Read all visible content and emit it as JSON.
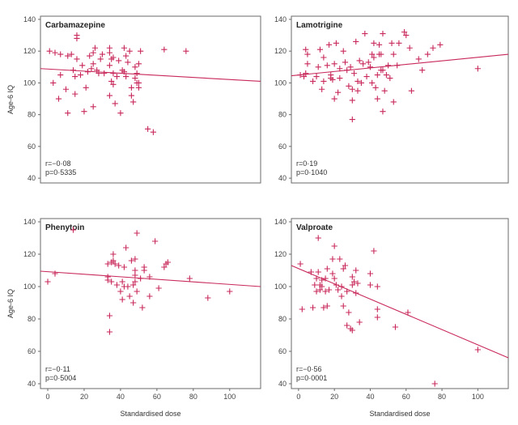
{
  "point_color": "#c8285a",
  "axis_color": "#6a6a6a",
  "chart_data": [
    {
      "type": "scatter",
      "title": "Carbamazepine",
      "xlabel": "",
      "ylabel": "Age-6 IQ",
      "xlim": [
        -4,
        117
      ],
      "ylim": [
        37,
        142
      ],
      "xticks": [],
      "yticks": [
        "40",
        "60",
        "80",
        "100",
        "120",
        "140"
      ],
      "stats": [
        "r=−0·08",
        "p=0·5335"
      ],
      "regression": {
        "x": [
          -4,
          117
        ],
        "y": [
          109,
          101
        ]
      },
      "points": [
        [
          1,
          120
        ],
        [
          3,
          100
        ],
        [
          4,
          119
        ],
        [
          6,
          90
        ],
        [
          7,
          118
        ],
        [
          7,
          105
        ],
        [
          10,
          96
        ],
        [
          11,
          117
        ],
        [
          11,
          81
        ],
        [
          13,
          118
        ],
        [
          14,
          108
        ],
        [
          15,
          104
        ],
        [
          15,
          93
        ],
        [
          16,
          130
        ],
        [
          16,
          128
        ],
        [
          16,
          115
        ],
        [
          18,
          105
        ],
        [
          19,
          111
        ],
        [
          20,
          82
        ],
        [
          21,
          97
        ],
        [
          22,
          107
        ],
        [
          23,
          117
        ],
        [
          24,
          109
        ],
        [
          25,
          85
        ],
        [
          25,
          112
        ],
        [
          25,
          119
        ],
        [
          26,
          122
        ],
        [
          27,
          108
        ],
        [
          28,
          106
        ],
        [
          29,
          115
        ],
        [
          30,
          118
        ],
        [
          31,
          106
        ],
        [
          34,
          119
        ],
        [
          34,
          111
        ],
        [
          34,
          122
        ],
        [
          34,
          92
        ],
        [
          35,
          115
        ],
        [
          35,
          101
        ],
        [
          36,
          99
        ],
        [
          36,
          116
        ],
        [
          36,
          106
        ],
        [
          37,
          87
        ],
        [
          38,
          104
        ],
        [
          39,
          114
        ],
        [
          40,
          81
        ],
        [
          41,
          108
        ],
        [
          42,
          122
        ],
        [
          42,
          107
        ],
        [
          43,
          104
        ],
        [
          43,
          117
        ],
        [
          44,
          113
        ],
        [
          45,
          120
        ],
        [
          46,
          92
        ],
        [
          46,
          97
        ],
        [
          47,
          88
        ],
        [
          48,
          103
        ],
        [
          48,
          110
        ],
        [
          49,
          106
        ],
        [
          49,
          100
        ],
        [
          50,
          112
        ],
        [
          50,
          97
        ],
        [
          50,
          100
        ],
        [
          51,
          120
        ],
        [
          55,
          71
        ],
        [
          58,
          69
        ],
        [
          64,
          121
        ],
        [
          76,
          120
        ]
      ]
    },
    {
      "type": "scatter",
      "title": "Lamotrigine",
      "xlabel": "",
      "ylabel": "",
      "xlim": [
        -4,
        117
      ],
      "ylim": [
        37,
        142
      ],
      "xticks": [],
      "yticks": [
        "40",
        "60",
        "80",
        "100",
        "120",
        "140"
      ],
      "stats": [
        "r=0·19",
        "p=0·1040"
      ],
      "regression": {
        "x": [
          -4,
          117
        ],
        "y": [
          104.5,
          118
        ]
      },
      "points": [
        [
          1,
          105
        ],
        [
          3,
          104
        ],
        [
          4,
          106
        ],
        [
          4,
          121
        ],
        [
          5,
          118
        ],
        [
          5,
          112
        ],
        [
          8,
          101
        ],
        [
          10,
          104
        ],
        [
          11,
          110
        ],
        [
          12,
          121
        ],
        [
          13,
          96
        ],
        [
          14,
          101
        ],
        [
          14,
          116
        ],
        [
          16,
          111
        ],
        [
          17,
          124
        ],
        [
          18,
          103
        ],
        [
          18,
          105
        ],
        [
          19,
          102
        ],
        [
          20,
          112
        ],
        [
          20,
          90
        ],
        [
          21,
          125
        ],
        [
          22,
          94
        ],
        [
          23,
          103
        ],
        [
          23,
          109
        ],
        [
          25,
          120
        ],
        [
          26,
          113
        ],
        [
          27,
          108
        ],
        [
          28,
          98
        ],
        [
          29,
          110
        ],
        [
          30,
          96
        ],
        [
          30,
          89
        ],
        [
          30,
          77
        ],
        [
          31,
          106
        ],
        [
          32,
          126
        ],
        [
          33,
          101
        ],
        [
          33,
          95
        ],
        [
          34,
          114
        ],
        [
          35,
          100
        ],
        [
          36,
          112
        ],
        [
          37,
          131
        ],
        [
          38,
          104
        ],
        [
          39,
          113
        ],
        [
          40,
          110
        ],
        [
          41,
          118
        ],
        [
          41,
          100
        ],
        [
          42,
          116
        ],
        [
          42,
          125
        ],
        [
          43,
          97
        ],
        [
          44,
          105
        ],
        [
          44,
          90
        ],
        [
          45,
          118
        ],
        [
          45,
          124
        ],
        [
          46,
          108
        ],
        [
          46,
          118
        ],
        [
          47,
          108
        ],
        [
          47,
          82
        ],
        [
          47,
          131
        ],
        [
          48,
          95
        ],
        [
          49,
          105
        ],
        [
          50,
          111
        ],
        [
          51,
          103
        ],
        [
          52,
          125
        ],
        [
          53,
          118
        ],
        [
          53,
          88
        ],
        [
          55,
          111
        ],
        [
          56,
          125
        ],
        [
          59,
          132
        ],
        [
          60,
          130
        ],
        [
          62,
          122
        ],
        [
          63,
          95
        ],
        [
          67,
          115
        ],
        [
          69,
          108
        ],
        [
          72,
          118
        ],
        [
          75,
          122
        ],
        [
          79,
          124
        ],
        [
          100,
          109
        ]
      ]
    },
    {
      "type": "scatter",
      "title": "Phenytoin",
      "xlabel": "Standardised dose",
      "ylabel": "Age-6 IQ",
      "xlim": [
        -4,
        117
      ],
      "ylim": [
        37,
        142
      ],
      "xticks": [
        "0",
        "20",
        "40",
        "60",
        "80",
        "100"
      ],
      "yticks": [
        "40",
        "60",
        "80",
        "100",
        "120",
        "140"
      ],
      "stats": [
        "r=−0·11",
        "p=0·5004"
      ],
      "regression": {
        "x": [
          -4,
          117
        ],
        "y": [
          109.5,
          100
        ]
      },
      "points": [
        [
          0,
          103
        ],
        [
          4,
          108
        ],
        [
          14,
          135
        ],
        [
          33,
          114
        ],
        [
          33,
          106
        ],
        [
          33,
          104
        ],
        [
          34,
          82
        ],
        [
          34,
          72
        ],
        [
          35,
          115
        ],
        [
          35,
          103
        ],
        [
          36,
          116
        ],
        [
          36,
          120
        ],
        [
          37,
          114
        ],
        [
          38,
          101
        ],
        [
          39,
          113
        ],
        [
          40,
          97
        ],
        [
          41,
          103
        ],
        [
          41,
          92
        ],
        [
          42,
          112
        ],
        [
          42,
          100
        ],
        [
          43,
          124
        ],
        [
          44,
          100
        ],
        [
          45,
          94
        ],
        [
          46,
          116
        ],
        [
          47,
          101
        ],
        [
          47,
          90
        ],
        [
          48,
          107
        ],
        [
          48,
          103
        ],
        [
          48,
          117
        ],
        [
          48,
          110
        ],
        [
          49,
          133
        ],
        [
          49,
          97
        ],
        [
          51,
          105
        ],
        [
          52,
          87
        ],
        [
          53,
          110
        ],
        [
          53,
          112
        ],
        [
          56,
          106
        ],
        [
          56,
          94
        ],
        [
          59,
          128
        ],
        [
          61,
          99
        ],
        [
          64,
          112
        ],
        [
          65,
          114
        ],
        [
          66,
          115
        ],
        [
          78,
          105
        ],
        [
          88,
          93
        ],
        [
          100,
          97
        ]
      ]
    },
    {
      "type": "scatter",
      "title": "Valproate",
      "xlabel": "Standardised dose",
      "ylabel": "",
      "xlim": [
        -4,
        117
      ],
      "ylim": [
        37,
        142
      ],
      "xticks": [
        "0",
        "20",
        "40",
        "60",
        "80",
        "100"
      ],
      "yticks": [
        "40",
        "60",
        "80",
        "100",
        "120",
        "140"
      ],
      "stats": [
        "r=−0·56",
        "p=0·0001"
      ],
      "regression": {
        "x": [
          -4,
          117
        ],
        "y": [
          113,
          56
        ]
      },
      "points": [
        [
          1,
          114
        ],
        [
          2,
          86
        ],
        [
          7,
          109
        ],
        [
          8,
          87
        ],
        [
          9,
          101
        ],
        [
          10,
          97
        ],
        [
          10,
          105
        ],
        [
          11,
          130
        ],
        [
          11,
          109
        ],
        [
          12,
          101
        ],
        [
          12,
          98
        ],
        [
          13,
          104
        ],
        [
          13,
          100
        ],
        [
          14,
          87
        ],
        [
          15,
          97
        ],
        [
          15,
          105
        ],
        [
          16,
          111
        ],
        [
          16,
          88
        ],
        [
          17,
          98
        ],
        [
          19,
          117
        ],
        [
          19,
          108
        ],
        [
          20,
          125
        ],
        [
          20,
          105
        ],
        [
          21,
          101
        ],
        [
          22,
          98
        ],
        [
          23,
          117
        ],
        [
          24,
          100
        ],
        [
          24,
          94
        ],
        [
          25,
          88
        ],
        [
          25,
          111
        ],
        [
          26,
          113
        ],
        [
          27,
          76
        ],
        [
          27,
          97
        ],
        [
          28,
          84
        ],
        [
          29,
          74
        ],
        [
          30,
          73
        ],
        [
          30,
          106
        ],
        [
          30,
          101
        ],
        [
          31,
          103
        ],
        [
          32,
          96
        ],
        [
          32,
          110
        ],
        [
          33,
          102
        ],
        [
          34,
          78
        ],
        [
          40,
          108
        ],
        [
          40,
          101
        ],
        [
          42,
          122
        ],
        [
          44,
          100
        ],
        [
          44,
          86
        ],
        [
          44,
          81
        ],
        [
          54,
          75
        ],
        [
          61,
          84
        ],
        [
          76,
          40
        ],
        [
          100,
          61
        ]
      ]
    }
  ]
}
